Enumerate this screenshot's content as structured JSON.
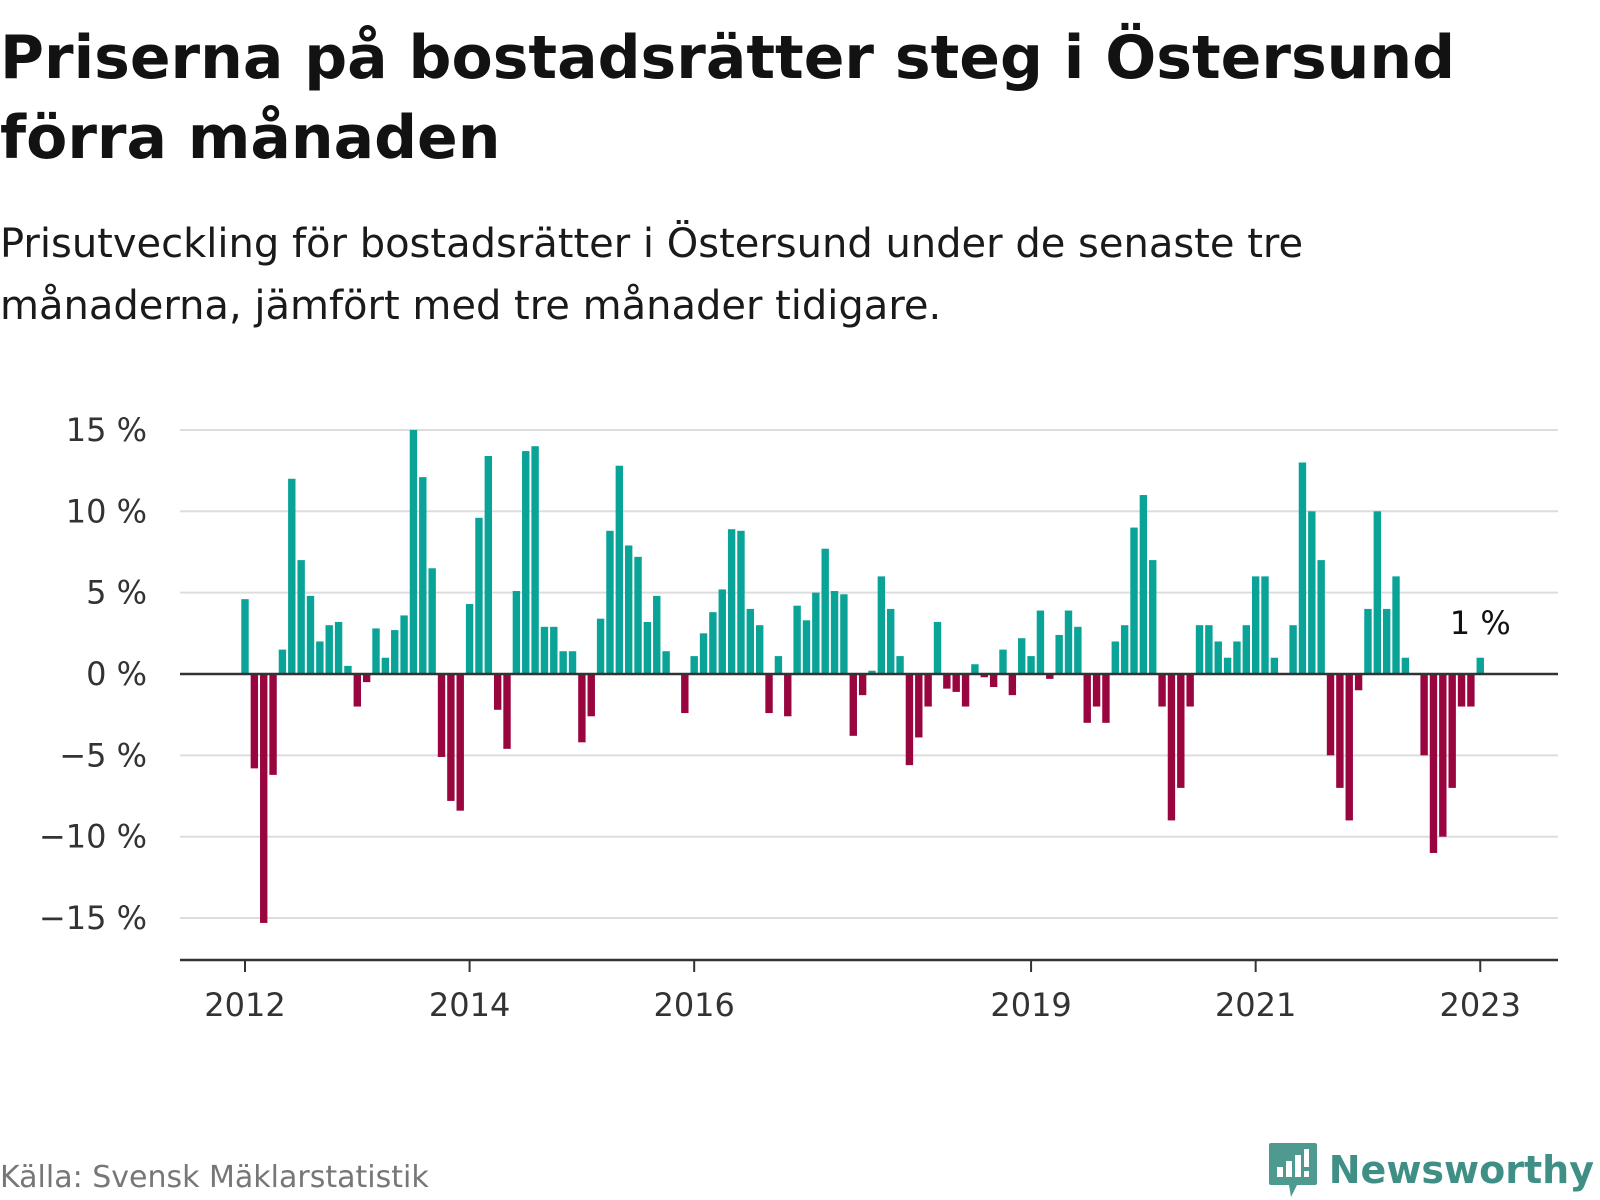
{
  "title": "Priserna på bostadsrätter steg i Östersund förra månaden",
  "subtitle": "Prisutveckling för bostadsrätter i Östersund under de senaste tre månaderna, jämfört med tre månader tidigare.",
  "source": "Källa: Svensk Mäklarstatistik",
  "brand": {
    "name": "Newsworthy",
    "icon": "newsworthy-logo-icon"
  },
  "colors": {
    "positive": "#0aa397",
    "negative": "#99063f",
    "grid": "#dddddd",
    "axis": "#333333",
    "text": "#333333"
  },
  "chart_data": {
    "type": "bar",
    "title": "Priserna på bostadsrätter steg i Östersund förra månaden",
    "subtitle": "Prisutveckling för bostadsrätter i Östersund under de senaste tre månaderna, jämfört med tre månader tidigare.",
    "xlabel": "",
    "ylabel": "",
    "start_month": "2012-01",
    "unit": "%",
    "ylim": [
      -17.5,
      15
    ],
    "yticks": [
      15,
      10,
      5,
      0,
      -5,
      -10,
      -15
    ],
    "ytick_labels": [
      "15 %",
      "10 %",
      "5 %",
      "0 %",
      "−5 %",
      "−10 %",
      "−15 %"
    ],
    "xticks": [
      {
        "month": "2012-01",
        "label": "2012"
      },
      {
        "month": "2014-01",
        "label": "2014"
      },
      {
        "month": "2016-01",
        "label": "2016"
      },
      {
        "month": "2019-01",
        "label": "2019"
      },
      {
        "month": "2021-01",
        "label": "2021"
      },
      {
        "month": "2023-01",
        "label": "2023"
      }
    ],
    "grid": true,
    "annotation": {
      "month": "2023-01",
      "text": "1 %"
    },
    "months": [
      "2012-01",
      "2012-02",
      "2012-03",
      "2012-04",
      "2012-05",
      "2012-06",
      "2012-07",
      "2012-08",
      "2012-09",
      "2012-10",
      "2012-11",
      "2012-12",
      "2013-01",
      "2013-02",
      "2013-03",
      "2013-04",
      "2013-05",
      "2013-06",
      "2013-07",
      "2013-08",
      "2013-09",
      "2013-10",
      "2013-11",
      "2013-12",
      "2014-01",
      "2014-02",
      "2014-03",
      "2014-04",
      "2014-05",
      "2014-06",
      "2014-07",
      "2014-08",
      "2014-09",
      "2014-10",
      "2014-11",
      "2014-12",
      "2015-01",
      "2015-02",
      "2015-03",
      "2015-04",
      "2015-05",
      "2015-06",
      "2015-07",
      "2015-08",
      "2015-09",
      "2015-10",
      "2015-11",
      "2015-12",
      "2016-01",
      "2016-02",
      "2016-03",
      "2016-04",
      "2016-05",
      "2016-06",
      "2016-07",
      "2016-08",
      "2016-09",
      "2016-10",
      "2016-11",
      "2016-12",
      "2017-01",
      "2017-02",
      "2017-03",
      "2017-04",
      "2017-05",
      "2017-06",
      "2017-07",
      "2017-08",
      "2017-09",
      "2017-10",
      "2017-11",
      "2017-12",
      "2018-01",
      "2018-02",
      "2018-03",
      "2018-04",
      "2018-05",
      "2018-06",
      "2018-07",
      "2018-08",
      "2018-09",
      "2018-10",
      "2018-11",
      "2018-12",
      "2019-01",
      "2019-02",
      "2019-03",
      "2019-04",
      "2019-05",
      "2019-06",
      "2019-07",
      "2019-08",
      "2019-09",
      "2019-10",
      "2019-11",
      "2019-12",
      "2020-01",
      "2020-02",
      "2020-03",
      "2020-04",
      "2020-05",
      "2020-06",
      "2020-07",
      "2020-08",
      "2020-09",
      "2020-10",
      "2020-11",
      "2020-12",
      "2021-01",
      "2021-02",
      "2021-03",
      "2021-04",
      "2021-05",
      "2021-06",
      "2021-07",
      "2021-08",
      "2021-09",
      "2021-10",
      "2021-11",
      "2021-12",
      "2022-01",
      "2022-02",
      "2022-03",
      "2022-04",
      "2022-05",
      "2022-06",
      "2022-07",
      "2022-08",
      "2022-09",
      "2022-10",
      "2022-11",
      "2022-12",
      "2023-01"
    ],
    "values": [
      4.6,
      -5.8,
      -15.3,
      -6.2,
      1.5,
      12.0,
      7.0,
      4.8,
      2.0,
      3.0,
      3.2,
      0.5,
      -2.0,
      -0.5,
      2.8,
      1.0,
      2.7,
      3.6,
      15.0,
      12.1,
      6.5,
      -5.1,
      -7.8,
      -8.4,
      4.3,
      9.6,
      13.4,
      -2.2,
      -4.6,
      5.1,
      13.7,
      14.0,
      2.9,
      2.9,
      1.4,
      1.4,
      -4.2,
      -2.6,
      3.4,
      8.8,
      12.8,
      7.9,
      7.2,
      3.2,
      4.8,
      1.4,
      0.0,
      -2.4,
      1.1,
      2.5,
      3.8,
      5.2,
      8.9,
      8.8,
      4.0,
      3.0,
      -2.4,
      1.1,
      -2.6,
      4.2,
      3.3,
      5.0,
      7.7,
      5.1,
      4.9,
      -3.8,
      -1.3,
      0.2,
      6.0,
      4.0,
      1.1,
      -5.6,
      -3.9,
      -2.0,
      3.2,
      -0.9,
      -1.1,
      -2.0,
      0.6,
      -0.2,
      -0.8,
      1.5,
      -1.3,
      2.2,
      1.1,
      3.9,
      -0.3,
      2.4,
      3.9,
      2.9,
      -3.0,
      -2.0,
      -3.0,
      2.0,
      3.0,
      9.0,
      11.0,
      7.0,
      -2.0,
      -9.0,
      -7.0,
      -2.0,
      3.0,
      3.0,
      2.0,
      1.0,
      2.0,
      3.0,
      6.0,
      6.0,
      1.0,
      0.0,
      3.0,
      13.0,
      10.0,
      7.0,
      -5.0,
      -7.0,
      -9.0,
      -1.0,
      4.0,
      10.0,
      4.0,
      6.0,
      1.0,
      0.0,
      -5.0,
      -11.0,
      -10.0,
      -7.0,
      -2.0,
      -2.0,
      1.0
    ]
  }
}
